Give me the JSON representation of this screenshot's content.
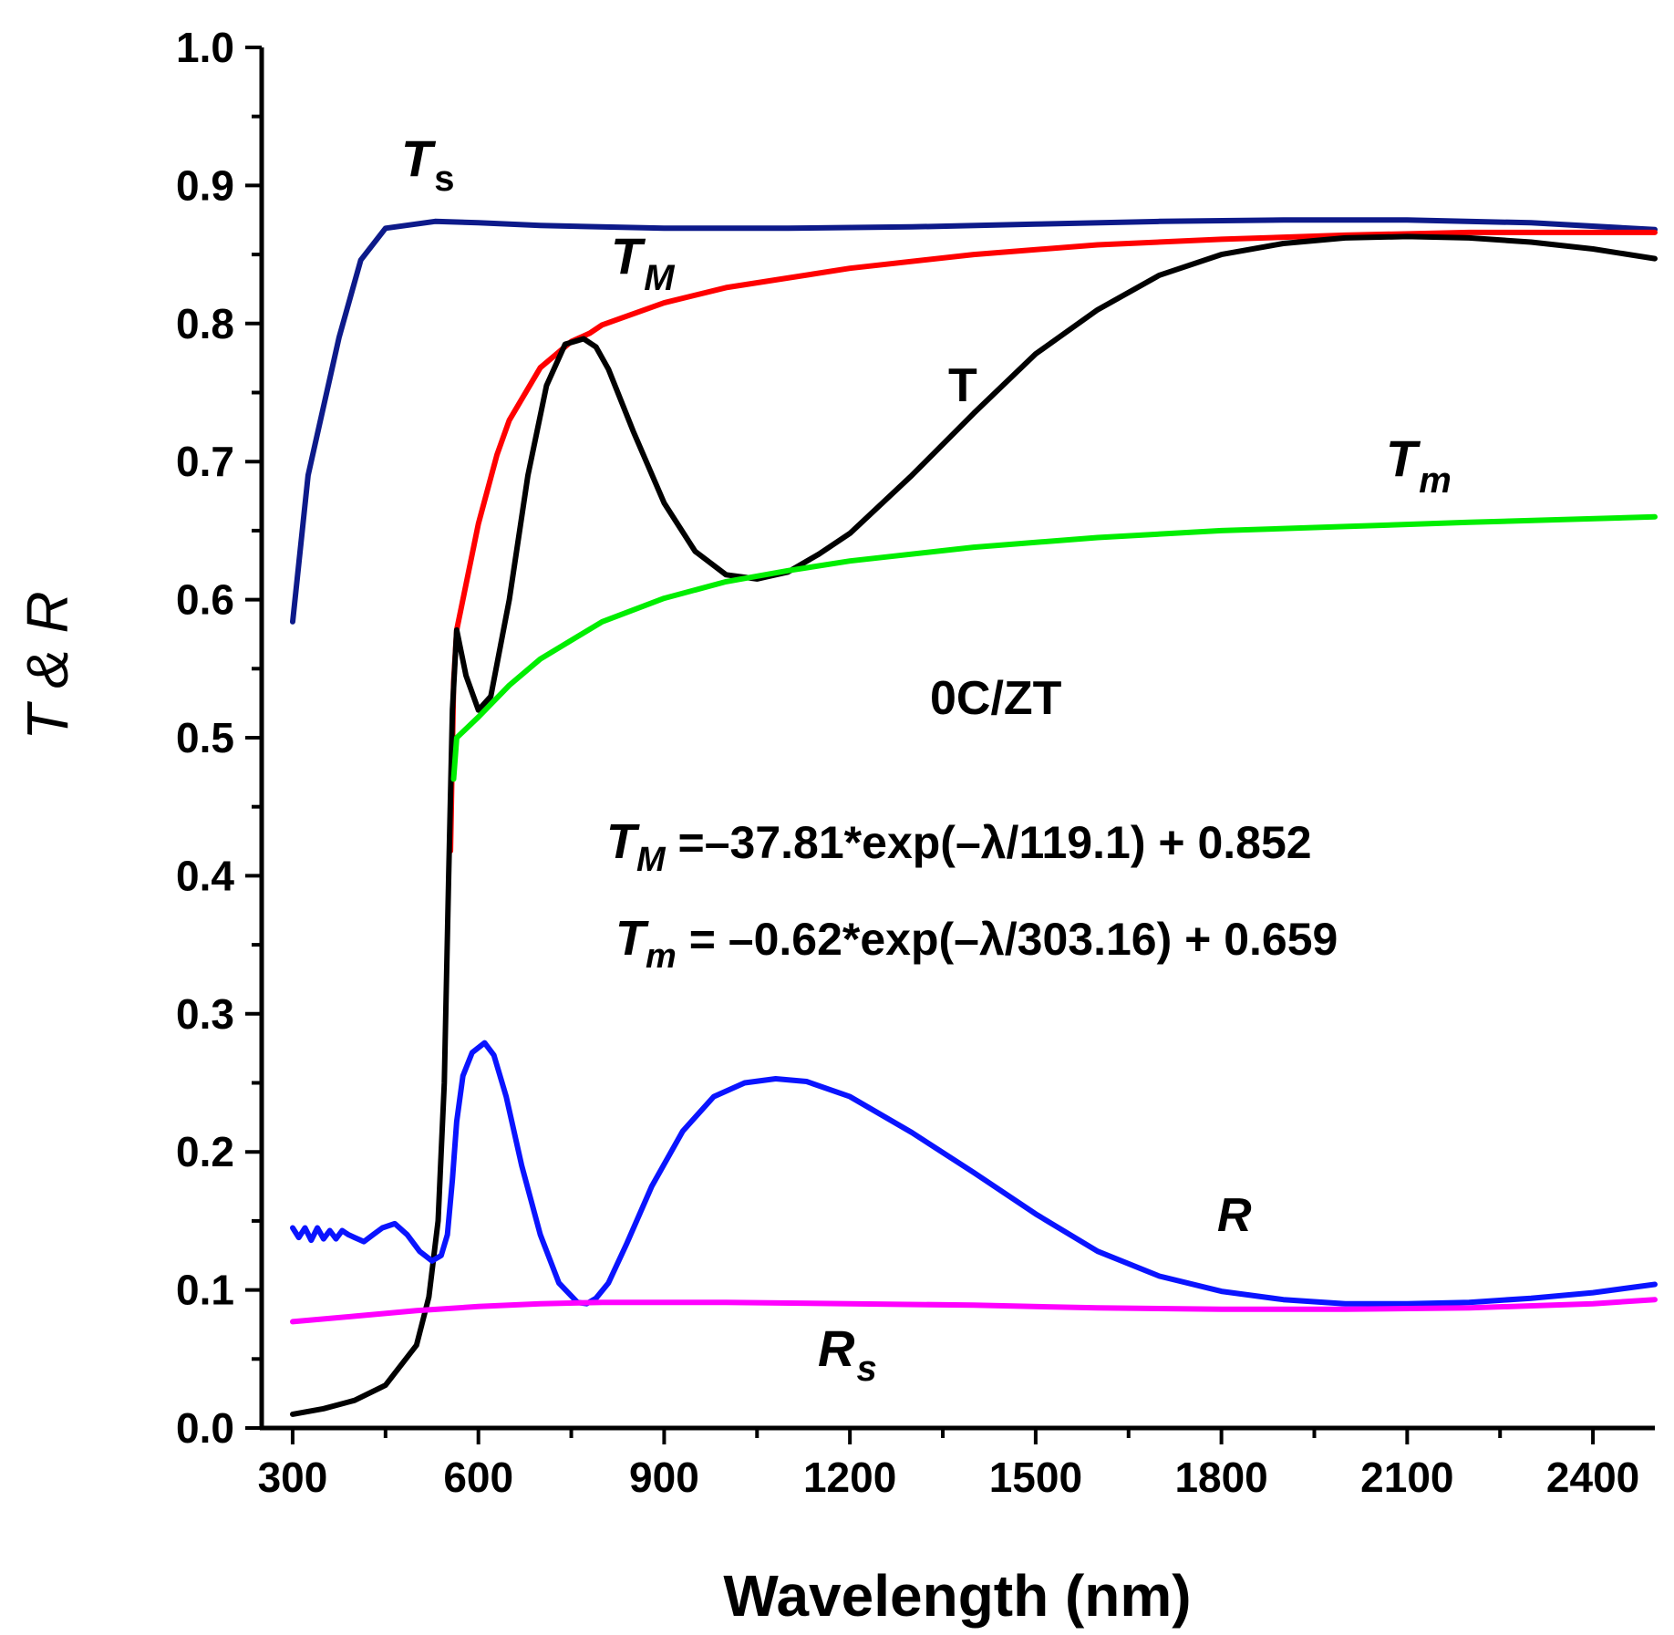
{
  "chart_data": {
    "type": "line",
    "title": "",
    "xlabel": "Wavelength (nm)",
    "ylabel": "T & R",
    "xlim": [
      250,
      2500
    ],
    "ylim": [
      0.0,
      1.0
    ],
    "x_ticks": [
      300,
      600,
      900,
      1200,
      1500,
      1800,
      2100,
      2400
    ],
    "x_tick_labels": [
      "300",
      "600",
      "900",
      "1200",
      "1500",
      "1800",
      "2100",
      "2400"
    ],
    "y_ticks": [
      0.0,
      0.1,
      0.2,
      0.3,
      0.4,
      0.5,
      0.6,
      0.7,
      0.8,
      0.9,
      1.0
    ],
    "y_tick_labels": [
      "0.0",
      "0.1",
      "0.2",
      "0.3",
      "0.4",
      "0.5",
      "0.6",
      "0.7",
      "0.8",
      "0.9",
      "1.0"
    ],
    "grid": false,
    "sample_label": "0C/ZT",
    "equations": [
      {
        "symbol": "T",
        "subscript": "M",
        "text": " =–37.81*exp(–λ/119.1) + 0.852"
      },
      {
        "symbol": "T",
        "subscript": "m",
        "text": " = –0.62*exp(–λ/303.16) + 0.659"
      }
    ],
    "series": [
      {
        "name": "Ts",
        "label_main": "T",
        "label_sub": "s",
        "color": "#0d1a8a",
        "x": [
          300,
          325,
          375,
          410,
          450,
          530,
          600,
          700,
          900,
          1100,
          1300,
          1500,
          1700,
          1900,
          2100,
          2300,
          2500
        ],
        "y": [
          0.584,
          0.69,
          0.79,
          0.846,
          0.869,
          0.874,
          0.873,
          0.871,
          0.869,
          0.869,
          0.87,
          0.872,
          0.874,
          0.875,
          0.875,
          0.873,
          0.868
        ]
      },
      {
        "name": "TM",
        "label_main": "T",
        "label_sub": "M",
        "color": "#ff0000",
        "x": [
          555,
          560,
          565,
          600,
          630,
          650,
          700,
          750,
          780,
          800,
          900,
          1000,
          1200,
          1400,
          1600,
          1800,
          2000,
          2200,
          2500
        ],
        "y": [
          0.418,
          0.54,
          0.578,
          0.655,
          0.705,
          0.73,
          0.768,
          0.787,
          0.793,
          0.799,
          0.815,
          0.826,
          0.84,
          0.85,
          0.857,
          0.861,
          0.864,
          0.866,
          0.866
        ]
      },
      {
        "name": "T",
        "label_main": "T",
        "label_sub": "",
        "color": "#000000",
        "x": [
          300,
          350,
          400,
          450,
          500,
          520,
          535,
          545,
          552,
          558,
          565,
          580,
          600,
          620,
          650,
          680,
          710,
          740,
          770,
          790,
          810,
          850,
          900,
          950,
          1000,
          1050,
          1100,
          1150,
          1200,
          1300,
          1400,
          1500,
          1600,
          1700,
          1800,
          1900,
          2000,
          2100,
          2200,
          2300,
          2400,
          2500
        ],
        "y": [
          0.01,
          0.014,
          0.02,
          0.031,
          0.06,
          0.095,
          0.15,
          0.25,
          0.4,
          0.52,
          0.578,
          0.545,
          0.52,
          0.53,
          0.6,
          0.69,
          0.755,
          0.785,
          0.789,
          0.783,
          0.767,
          0.722,
          0.67,
          0.635,
          0.618,
          0.615,
          0.62,
          0.633,
          0.648,
          0.69,
          0.735,
          0.778,
          0.81,
          0.835,
          0.85,
          0.858,
          0.862,
          0.863,
          0.862,
          0.859,
          0.854,
          0.847
        ]
      },
      {
        "name": "Tm",
        "label_main": "T",
        "label_sub": "m",
        "color": "#00ee00",
        "x": [
          560,
          565,
          600,
          650,
          700,
          800,
          900,
          1000,
          1100,
          1200,
          1400,
          1600,
          1800,
          2000,
          2200,
          2500
        ],
        "y": [
          0.47,
          0.5,
          0.515,
          0.538,
          0.557,
          0.584,
          0.601,
          0.613,
          0.621,
          0.628,
          0.638,
          0.645,
          0.65,
          0.653,
          0.656,
          0.66
        ]
      },
      {
        "name": "R",
        "label_main": "R",
        "label_sub": "",
        "color": "#0a14ff",
        "x": [
          300,
          310,
          320,
          330,
          340,
          350,
          360,
          370,
          380,
          390,
          400,
          415,
          430,
          445,
          465,
          485,
          505,
          525,
          540,
          550,
          558,
          565,
          575,
          590,
          610,
          625,
          645,
          670,
          700,
          730,
          760,
          775,
          790,
          810,
          840,
          880,
          930,
          980,
          1030,
          1080,
          1130,
          1200,
          1300,
          1400,
          1500,
          1600,
          1700,
          1800,
          1900,
          2000,
          2100,
          2200,
          2300,
          2400,
          2500
        ],
        "y": [
          0.145,
          0.138,
          0.145,
          0.136,
          0.145,
          0.137,
          0.143,
          0.137,
          0.143,
          0.14,
          0.138,
          0.135,
          0.14,
          0.145,
          0.148,
          0.14,
          0.128,
          0.121,
          0.125,
          0.14,
          0.18,
          0.222,
          0.255,
          0.272,
          0.279,
          0.27,
          0.24,
          0.19,
          0.14,
          0.105,
          0.091,
          0.09,
          0.094,
          0.105,
          0.134,
          0.175,
          0.215,
          0.24,
          0.25,
          0.253,
          0.251,
          0.24,
          0.214,
          0.185,
          0.155,
          0.128,
          0.11,
          0.099,
          0.093,
          0.09,
          0.09,
          0.091,
          0.094,
          0.098,
          0.104
        ]
      },
      {
        "name": "Rs",
        "label_main": "R",
        "label_sub": "s",
        "color": "#ff00ff",
        "x": [
          300,
          400,
          500,
          600,
          700,
          800,
          900,
          1000,
          1200,
          1400,
          1600,
          1800,
          2000,
          2200,
          2400,
          2500
        ],
        "y": [
          0.077,
          0.081,
          0.085,
          0.088,
          0.09,
          0.091,
          0.091,
          0.091,
          0.09,
          0.089,
          0.087,
          0.086,
          0.086,
          0.087,
          0.09,
          0.093
        ]
      }
    ]
  }
}
